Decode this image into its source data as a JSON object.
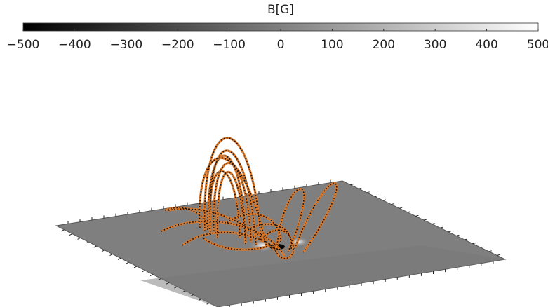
{
  "chart_data": {
    "type": "colorbar",
    "title": "B[G]",
    "xlim": [
      -500,
      500
    ],
    "xticks": [
      {
        "value": -500,
        "label": "−500"
      },
      {
        "value": -400,
        "label": "−400"
      },
      {
        "value": -300,
        "label": "−300"
      },
      {
        "value": -200,
        "label": "−200"
      },
      {
        "value": -100,
        "label": "−100"
      },
      0,
      100,
      200,
      300,
      400,
      500
    ],
    "colors": [
      "#000000",
      "#ffffff"
    ]
  }
}
